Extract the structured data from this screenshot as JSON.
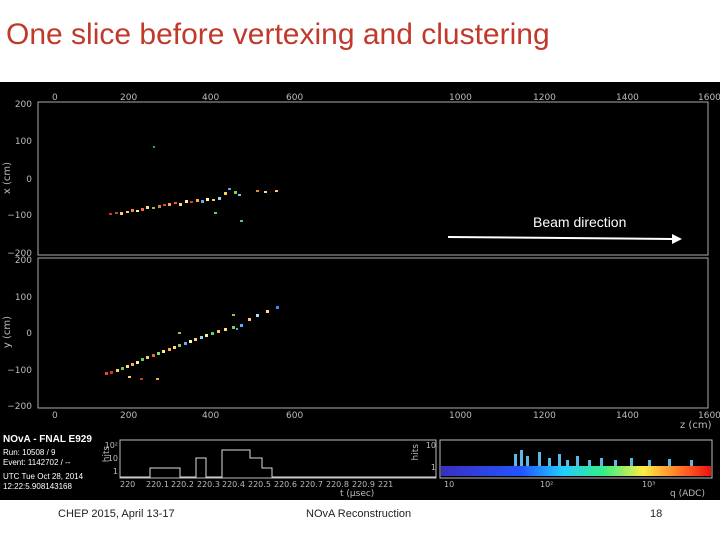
{
  "slide": {
    "title": "One slice before vertexing and clustering",
    "footer_left": "CHEP 2015,  April 13-17",
    "footer_center": "NOvA Reconstruction",
    "page_number": "18"
  },
  "event_display": {
    "zx_view": {
      "y_label": "x (cm)",
      "x_ticks": [
        "0",
        "200",
        "400",
        "600",
        "1000",
        "1200",
        "1400",
        "1600"
      ],
      "y_ticks": [
        "200",
        "100",
        "0",
        "−100",
        "−200"
      ]
    },
    "zy_view": {
      "y_label": "y (cm)",
      "x_label": "z (cm)",
      "x_ticks": [
        "0",
        "200",
        "400",
        "600",
        "1000",
        "1200",
        "1400",
        "1600"
      ],
      "y_ticks": [
        "200",
        "100",
        "0",
        "−100",
        "−200"
      ]
    },
    "beam_label": "Beam direction",
    "info": {
      "title": "NOvA - FNAL E929",
      "run": "Run:  10508 / 9",
      "event": "Event:  1142702 / --",
      "utc": "UTC Tue Oct 28, 2014",
      "time": "12:22:5.908143168"
    },
    "time_hist": {
      "y_label": "hits",
      "x_label": "t (μsec)",
      "x_ticks": [
        "220",
        "220.1",
        "220.2",
        "220.3",
        "220.4",
        "220.5",
        "220.6",
        "220.7",
        "220.8",
        "220.9",
        "221"
      ],
      "y_ticks": [
        "10²",
        "10",
        "1"
      ]
    },
    "charge_hist": {
      "y_label": "hits",
      "x_label": "q (ADC)",
      "x_ticks": [
        "10",
        "10²",
        "10³"
      ],
      "y_ticks": [
        "10",
        "1"
      ]
    },
    "colors": {
      "text": "#ffffff",
      "background": "#000000",
      "title": "#c0392b"
    }
  }
}
